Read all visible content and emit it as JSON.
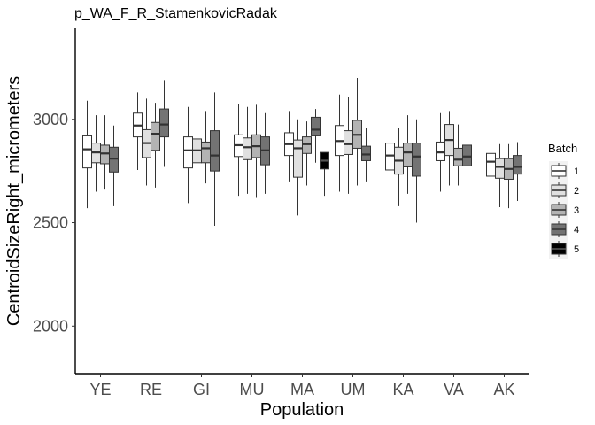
{
  "chart_data": {
    "type": "boxplot",
    "title": "p_WA_F_R_StamenkovicRadak",
    "xlabel": "Population",
    "ylabel": "CentroidSizeRight_micrometers",
    "ylim": [
      1770,
      3440
    ],
    "yticks": [
      2000,
      2500,
      3000
    ],
    "categories": [
      "YE",
      "RE",
      "GI",
      "MU",
      "MA",
      "UM",
      "KA",
      "VA",
      "AK"
    ],
    "legend": {
      "title": "Batch",
      "position": "right",
      "entries": [
        {
          "label": "1",
          "color": "#ffffff"
        },
        {
          "label": "2",
          "color": "#e0e0e0"
        },
        {
          "label": "3",
          "color": "#b3b3b3"
        },
        {
          "label": "4",
          "color": "#737373"
        },
        {
          "label": "5",
          "color": "#000000"
        }
      ]
    },
    "series": [
      {
        "name": "1",
        "color": "#ffffff",
        "boxes": [
          {
            "category": "YE",
            "min": 2570,
            "q1": 2765,
            "median": 2855,
            "q3": 2920,
            "max": 3090
          },
          {
            "category": "RE",
            "min": 2755,
            "q1": 2915,
            "median": 2970,
            "q3": 3030,
            "max": 3130
          },
          {
            "category": "GI",
            "min": 2595,
            "q1": 2765,
            "median": 2850,
            "q3": 2915,
            "max": 3060
          },
          {
            "category": "MU",
            "min": 2630,
            "q1": 2820,
            "median": 2875,
            "q3": 2925,
            "max": 3075
          },
          {
            "category": "MA",
            "min": 2700,
            "q1": 2825,
            "median": 2880,
            "q3": 2935,
            "max": 3040
          },
          {
            "category": "UM",
            "min": 2650,
            "q1": 2825,
            "median": 2895,
            "q3": 2970,
            "max": 3120
          },
          {
            "category": "KA",
            "min": 2555,
            "q1": 2755,
            "median": 2825,
            "q3": 2885,
            "max": 3000
          },
          {
            "category": "VA",
            "min": 2650,
            "q1": 2800,
            "median": 2840,
            "q3": 2890,
            "max": 3030
          },
          {
            "category": "AK",
            "min": 2540,
            "q1": 2725,
            "median": 2795,
            "q3": 2835,
            "max": 2920
          }
        ]
      },
      {
        "name": "2",
        "color": "#e0e0e0",
        "boxes": [
          {
            "category": "YE",
            "min": 2650,
            "q1": 2790,
            "median": 2840,
            "q3": 2885,
            "max": 3020
          },
          {
            "category": "RE",
            "min": 2680,
            "q1": 2815,
            "median": 2885,
            "q3": 2950,
            "max": 3100
          },
          {
            "category": "GI",
            "min": 2630,
            "q1": 2790,
            "median": 2850,
            "q3": 2905,
            "max": 3040
          },
          {
            "category": "MU",
            "min": 2640,
            "q1": 2805,
            "median": 2865,
            "q3": 2910,
            "max": 3060
          },
          {
            "category": "MA",
            "min": 2535,
            "q1": 2720,
            "median": 2860,
            "q3": 2900,
            "max": 3000
          },
          {
            "category": "UM",
            "min": 2640,
            "q1": 2830,
            "median": 2880,
            "q3": 2945,
            "max": 3110
          },
          {
            "category": "KA",
            "min": 2580,
            "q1": 2735,
            "median": 2800,
            "q3": 2865,
            "max": 2960
          },
          {
            "category": "VA",
            "min": 2680,
            "q1": 2825,
            "median": 2900,
            "q3": 2975,
            "max": 3040
          },
          {
            "category": "AK",
            "min": 2575,
            "q1": 2715,
            "median": 2770,
            "q3": 2810,
            "max": 2880
          }
        ]
      },
      {
        "name": "3",
        "color": "#b3b3b3",
        "boxes": [
          {
            "category": "YE",
            "min": 2660,
            "q1": 2785,
            "median": 2835,
            "q3": 2875,
            "max": 3020
          },
          {
            "category": "RE",
            "min": 2670,
            "q1": 2850,
            "median": 2930,
            "q3": 2985,
            "max": 3080
          },
          {
            "category": "GI",
            "min": 2690,
            "q1": 2790,
            "median": 2860,
            "q3": 2890,
            "max": 3040
          },
          {
            "category": "MU",
            "min": 2620,
            "q1": 2815,
            "median": 2870,
            "q3": 2925,
            "max": 3070
          },
          {
            "category": "MA",
            "min": 2680,
            "q1": 2835,
            "median": 2880,
            "q3": 2915,
            "max": 2990
          },
          {
            "category": "UM",
            "min": 2680,
            "q1": 2860,
            "median": 2925,
            "q3": 2995,
            "max": 3200
          },
          {
            "category": "KA",
            "min": 2640,
            "q1": 2770,
            "median": 2840,
            "q3": 2885,
            "max": 3020
          },
          {
            "category": "VA",
            "min": 2680,
            "q1": 2775,
            "median": 2805,
            "q3": 2860,
            "max": 2975
          },
          {
            "category": "AK",
            "min": 2570,
            "q1": 2710,
            "median": 2760,
            "q3": 2810,
            "max": 2880
          }
        ]
      },
      {
        "name": "4",
        "color": "#737373",
        "boxes": [
          {
            "category": "YE",
            "min": 2580,
            "q1": 2745,
            "median": 2810,
            "q3": 2865,
            "max": 2970
          },
          {
            "category": "RE",
            "min": 2770,
            "q1": 2915,
            "median": 2975,
            "q3": 3050,
            "max": 3190
          },
          {
            "category": "GI",
            "min": 2485,
            "q1": 2750,
            "median": 2825,
            "q3": 2945,
            "max": 3130
          },
          {
            "category": "MU",
            "min": 2640,
            "q1": 2780,
            "median": 2850,
            "q3": 2915,
            "max": 3030
          },
          {
            "category": "MA",
            "min": 2790,
            "q1": 2920,
            "median": 2950,
            "q3": 3010,
            "max": 3050
          },
          {
            "category": "UM",
            "min": 2700,
            "q1": 2800,
            "median": 2830,
            "q3": 2870,
            "max": 2960
          },
          {
            "category": "KA",
            "min": 2500,
            "q1": 2725,
            "median": 2820,
            "q3": 2885,
            "max": 3000
          },
          {
            "category": "VA",
            "min": 2620,
            "q1": 2775,
            "median": 2820,
            "q3": 2875,
            "max": 3020
          },
          {
            "category": "AK",
            "min": 2605,
            "q1": 2735,
            "median": 2770,
            "q3": 2825,
            "max": 2890
          }
        ]
      },
      {
        "name": "5",
        "color": "#000000",
        "boxes": [
          {
            "category": "MA",
            "min": 2630,
            "q1": 2760,
            "median": 2800,
            "q3": 2840,
            "max": 2840
          }
        ]
      }
    ]
  }
}
